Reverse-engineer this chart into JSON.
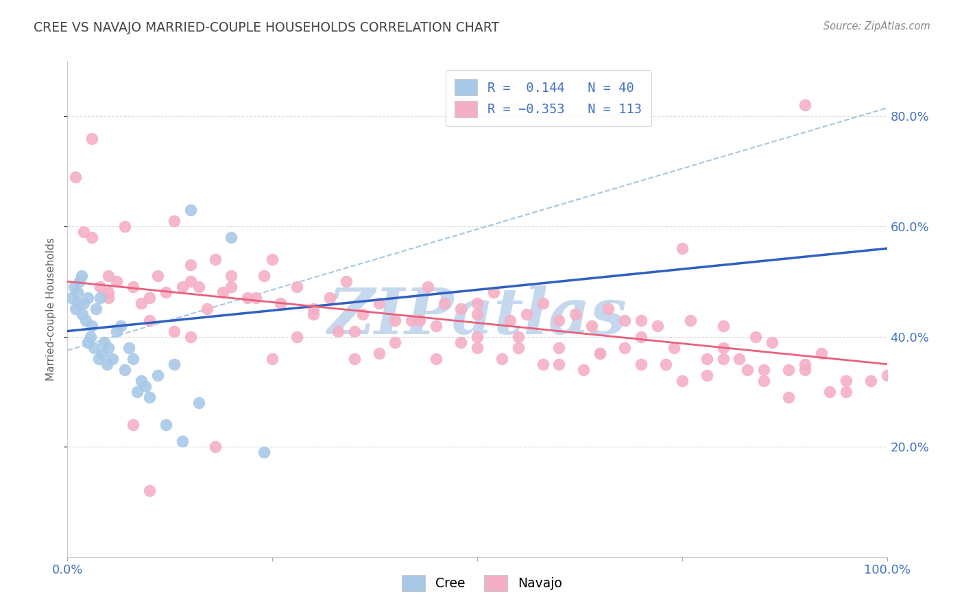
{
  "title": "CREE VS NAVAJO MARRIED-COUPLE HOUSEHOLDS CORRELATION CHART",
  "source": "Source: ZipAtlas.com",
  "ylabel": "Married-couple Households",
  "legend_cree_r": "R = ",
  "legend_cree_rv": " 0.144",
  "legend_cree_n": "  N = ",
  "legend_cree_nv": "40",
  "legend_navajo_r": "R = ",
  "legend_navajo_rv": "-0.353",
  "legend_navajo_n": "  N = ",
  "legend_navajo_nv": "113",
  "cree_color": "#a8c8e8",
  "navajo_color": "#f5afc5",
  "cree_line_color": "#3060c0",
  "navajo_line_color": "#e8607a",
  "dash_line_color": "#90b8d8",
  "watermark_text": "ZIPatlas",
  "watermark_color": "#c5d8ee",
  "background_color": "#ffffff",
  "grid_color": "#cccccc",
  "title_color": "#444444",
  "tick_color": "#4472c4",
  "source_color": "#888888",
  "xmin": 0.0,
  "xmax": 1.0,
  "ymin": 0.0,
  "ymax": 0.9,
  "cree_x": [
    0.005,
    0.008,
    0.01,
    0.012,
    0.013,
    0.015,
    0.017,
    0.018,
    0.02,
    0.022,
    0.025,
    0.025,
    0.028,
    0.03,
    0.032,
    0.035,
    0.038,
    0.04,
    0.042,
    0.045,
    0.048,
    0.05,
    0.055,
    0.06,
    0.065,
    0.07,
    0.075,
    0.08,
    0.085,
    0.09,
    0.095,
    0.1,
    0.11,
    0.12,
    0.13,
    0.14,
    0.15,
    0.16,
    0.2,
    0.24
  ],
  "cree_y": [
    0.47,
    0.49,
    0.45,
    0.48,
    0.46,
    0.5,
    0.51,
    0.44,
    0.46,
    0.43,
    0.39,
    0.47,
    0.4,
    0.42,
    0.38,
    0.45,
    0.36,
    0.47,
    0.37,
    0.39,
    0.35,
    0.38,
    0.36,
    0.41,
    0.42,
    0.34,
    0.38,
    0.36,
    0.3,
    0.32,
    0.31,
    0.29,
    0.33,
    0.24,
    0.35,
    0.21,
    0.63,
    0.28,
    0.58,
    0.19
  ],
  "navajo_x": [
    0.01,
    0.02,
    0.03,
    0.04,
    0.05,
    0.06,
    0.07,
    0.08,
    0.09,
    0.1,
    0.11,
    0.12,
    0.13,
    0.14,
    0.15,
    0.16,
    0.17,
    0.18,
    0.19,
    0.2,
    0.22,
    0.24,
    0.26,
    0.28,
    0.3,
    0.32,
    0.34,
    0.36,
    0.38,
    0.4,
    0.42,
    0.44,
    0.46,
    0.48,
    0.5,
    0.5,
    0.52,
    0.54,
    0.56,
    0.58,
    0.6,
    0.6,
    0.62,
    0.64,
    0.66,
    0.68,
    0.7,
    0.7,
    0.72,
    0.74,
    0.76,
    0.78,
    0.8,
    0.8,
    0.82,
    0.84,
    0.86,
    0.88,
    0.9,
    0.92,
    0.05,
    0.1,
    0.15,
    0.2,
    0.25,
    0.3,
    0.35,
    0.4,
    0.45,
    0.5,
    0.55,
    0.6,
    0.65,
    0.7,
    0.75,
    0.8,
    0.85,
    0.9,
    0.95,
    1.0,
    0.03,
    0.08,
    0.13,
    0.18,
    0.23,
    0.28,
    0.33,
    0.38,
    0.43,
    0.48,
    0.53,
    0.58,
    0.63,
    0.68,
    0.73,
    0.78,
    0.83,
    0.88,
    0.93,
    0.98,
    0.25,
    0.5,
    0.75,
    0.1,
    0.9,
    0.45,
    0.55,
    0.35,
    0.65,
    0.15,
    0.85,
    0.05,
    0.95
  ],
  "navajo_y": [
    0.69,
    0.59,
    0.58,
    0.49,
    0.51,
    0.5,
    0.6,
    0.49,
    0.46,
    0.47,
    0.51,
    0.48,
    0.41,
    0.49,
    0.53,
    0.49,
    0.45,
    0.54,
    0.48,
    0.51,
    0.47,
    0.51,
    0.46,
    0.49,
    0.44,
    0.47,
    0.5,
    0.44,
    0.46,
    0.43,
    0.43,
    0.49,
    0.46,
    0.45,
    0.44,
    0.4,
    0.48,
    0.43,
    0.44,
    0.46,
    0.43,
    0.38,
    0.44,
    0.42,
    0.45,
    0.43,
    0.4,
    0.43,
    0.42,
    0.38,
    0.43,
    0.36,
    0.42,
    0.38,
    0.36,
    0.4,
    0.39,
    0.34,
    0.35,
    0.37,
    0.48,
    0.43,
    0.4,
    0.49,
    0.36,
    0.45,
    0.41,
    0.39,
    0.36,
    0.38,
    0.4,
    0.35,
    0.37,
    0.35,
    0.32,
    0.36,
    0.32,
    0.34,
    0.3,
    0.33,
    0.76,
    0.24,
    0.61,
    0.2,
    0.47,
    0.4,
    0.41,
    0.37,
    0.43,
    0.39,
    0.36,
    0.35,
    0.34,
    0.38,
    0.35,
    0.33,
    0.34,
    0.29,
    0.3,
    0.32,
    0.54,
    0.46,
    0.56,
    0.12,
    0.82,
    0.42,
    0.38,
    0.36,
    0.37,
    0.5,
    0.34,
    0.47,
    0.32
  ],
  "cree_trend_x": [
    0.0,
    1.0
  ],
  "cree_trend_y": [
    0.41,
    0.56
  ],
  "navajo_trend_x": [
    0.0,
    1.0
  ],
  "navajo_trend_y": [
    0.5,
    0.35
  ],
  "dash_trend_x": [
    0.0,
    1.0
  ],
  "dash_trend_y": [
    0.375,
    0.815
  ]
}
